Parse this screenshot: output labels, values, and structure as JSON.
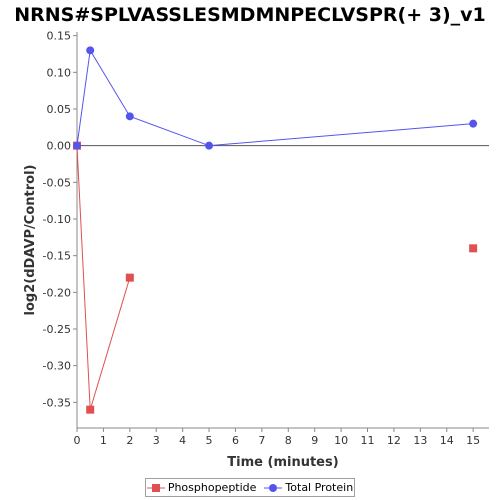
{
  "chart_data": {
    "type": "line",
    "title": "NRNS#SPLVASSLESMDMNPECLVSPR(+ 3)_v1",
    "xlabel": "Time (minutes)",
    "ylabel": "log2(dDAVP/Control)",
    "xlim": [
      0,
      15.6
    ],
    "ylim": [
      -0.385,
      0.155
    ],
    "x_ticks": [
      0,
      1,
      2,
      3,
      4,
      5,
      6,
      7,
      8,
      9,
      10,
      11,
      12,
      13,
      14,
      15
    ],
    "y_ticks": [
      0.15,
      0.1,
      0.05,
      0.0,
      -0.05,
      -0.1,
      -0.15,
      -0.2,
      -0.25,
      -0.3,
      -0.35
    ],
    "y_tick_labels": [
      "0.15",
      "0.10",
      "0.05",
      "0.00",
      "-0.05",
      "-0.10",
      "-0.15",
      "-0.20",
      "-0.25",
      "-0.30",
      "-0.35"
    ],
    "zero_line": 0,
    "grid": false,
    "legend_position": "bottom",
    "series": [
      {
        "name": "Phosphopeptide",
        "color": "#e05050",
        "marker": "square",
        "segments": [
          [
            {
              "x": 0,
              "y": 0.0
            },
            {
              "x": 0.5,
              "y": -0.36
            },
            {
              "x": 2,
              "y": -0.18
            }
          ],
          [
            {
              "x": 15,
              "y": -0.14
            }
          ]
        ]
      },
      {
        "name": "Total Protein",
        "color": "#5555ee",
        "marker": "circle",
        "segments": [
          [
            {
              "x": 0,
              "y": 0.0
            },
            {
              "x": 0.5,
              "y": 0.13
            },
            {
              "x": 2,
              "y": 0.04
            },
            {
              "x": 5,
              "y": 0.0
            },
            {
              "x": 15,
              "y": 0.03
            }
          ]
        ]
      }
    ]
  }
}
